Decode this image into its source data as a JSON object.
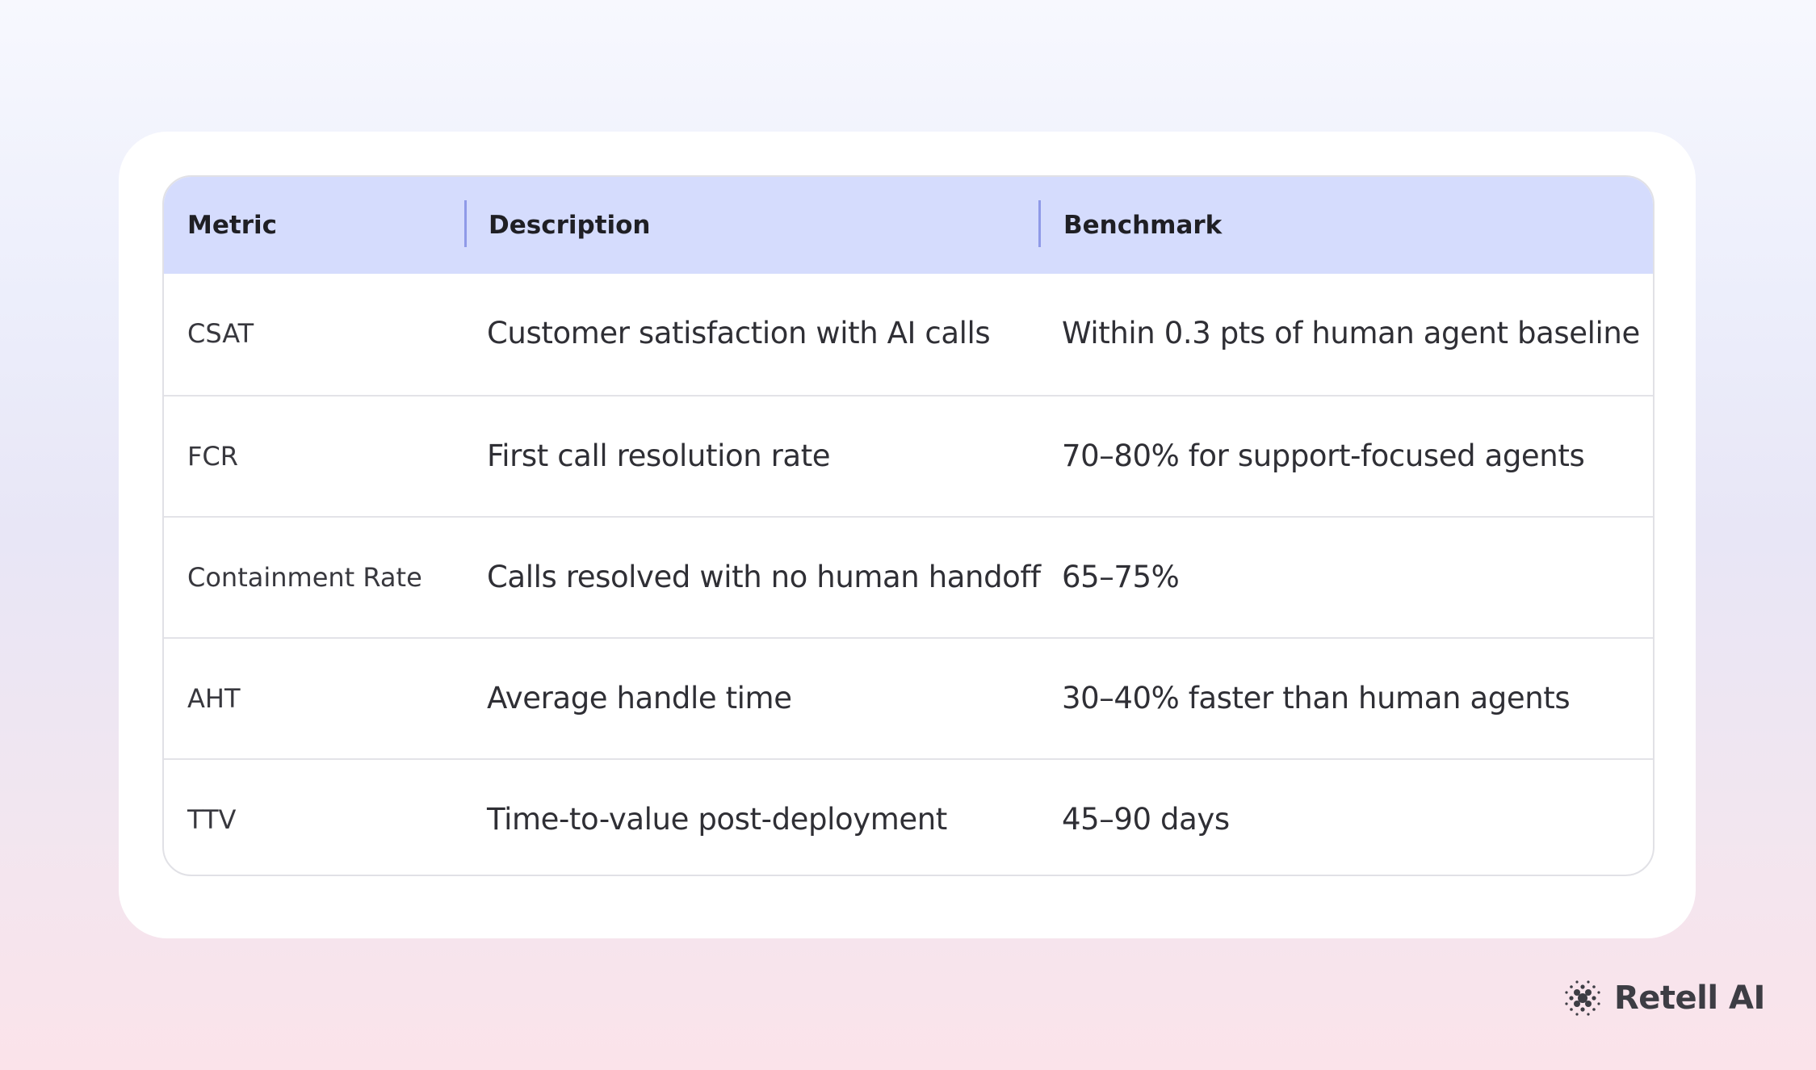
{
  "table": {
    "headers": [
      "Metric",
      "Description",
      "Benchmark"
    ],
    "rows": [
      {
        "metric": "CSAT",
        "description": "Customer satisfaction with AI calls",
        "benchmark": "Within 0.3 pts of human agent baseline"
      },
      {
        "metric": "FCR",
        "description": "First call resolution rate",
        "benchmark": "70–80% for support-focused agents"
      },
      {
        "metric": "Containment Rate",
        "description": "Calls resolved with no human handoff",
        "benchmark": "65–75%"
      },
      {
        "metric": "AHT",
        "description": "Average handle time",
        "benchmark": "30–40% faster than human agents"
      },
      {
        "metric": "TTV",
        "description": "Time-to-value post-deployment",
        "benchmark": "45–90 days"
      }
    ]
  },
  "brand": {
    "name": "Retell AI",
    "icon": "retell-logo-icon"
  },
  "colors": {
    "header_bg": "#d5dcfd",
    "divider": "#8f9ae8",
    "text": "#2f2f35"
  }
}
